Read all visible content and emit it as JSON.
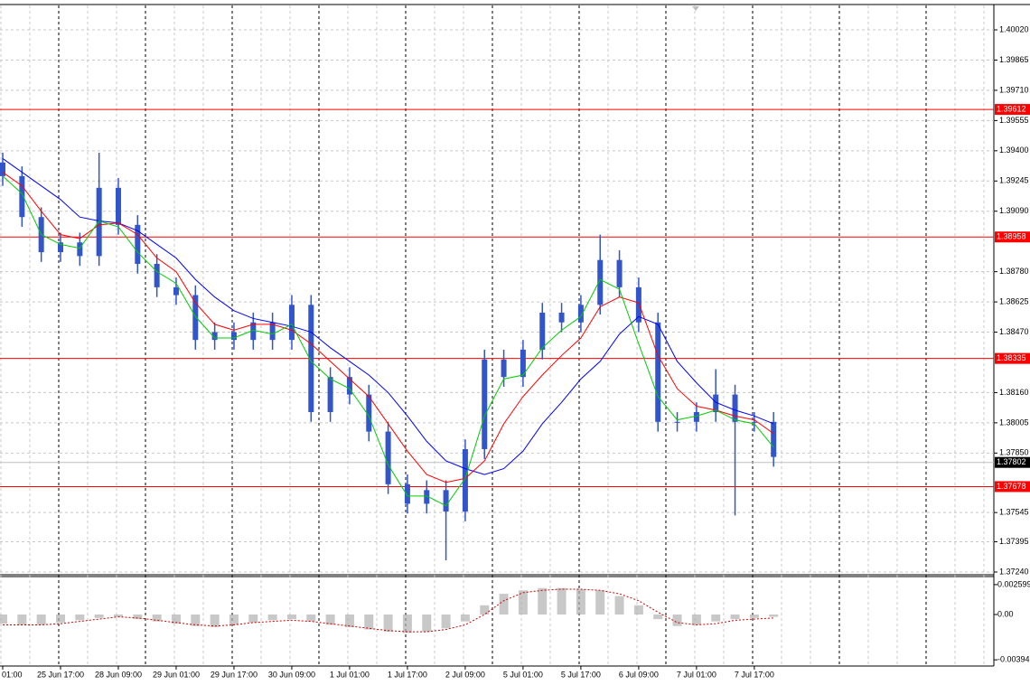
{
  "chart_data": {
    "type": "candlestick",
    "categories": [
      "01:00",
      null,
      null,
      "25 Jun 17:00",
      null,
      null,
      "28 Jun 09:00",
      null,
      null,
      "29 Jun 01:00",
      null,
      null,
      "29 Jun 17:00",
      null,
      null,
      "30 Jun 09:00",
      null,
      null,
      "1 Jul 01:00",
      null,
      null,
      "1 Jul 17:00",
      null,
      null,
      "2 Jul 09:00",
      null,
      null,
      "5 Jul 01:00",
      null,
      null,
      "5 Jul 17:00",
      null,
      null,
      "6 Jul 09:00",
      null,
      null,
      "7 Jul 01:00",
      null,
      null,
      "7 Jul 17:00",
      null
    ],
    "open": [
      1.3934,
      1.3927,
      1.3906,
      1.3888,
      1.3893,
      1.3886,
      1.3921,
      1.3902,
      1.3882,
      1.387,
      1.3866,
      1.3843,
      1.3847,
      1.3843,
      1.3852,
      1.3843,
      1.3861,
      1.3806,
      1.3824,
      1.3815,
      1.3796,
      1.3769,
      1.3759,
      1.3766,
      1.3755,
      1.3787,
      1.3833,
      1.3824,
      1.3838,
      1.3857,
      1.3852,
      1.3861,
      1.3884,
      1.387,
      1.3852,
      1.3801,
      1.3801,
      1.3806,
      1.3815,
      1.3801,
      1.3801
    ],
    "high": [
      1.3939,
      1.3932,
      1.3911,
      1.3898,
      1.3898,
      1.3939,
      1.3926,
      1.3907,
      1.3887,
      1.3875,
      1.3871,
      1.3852,
      1.3852,
      1.3857,
      1.3857,
      1.3866,
      1.3866,
      1.3829,
      1.3829,
      1.382,
      1.3801,
      1.3774,
      1.3771,
      1.3771,
      1.3792,
      1.3838,
      1.3838,
      1.3843,
      1.3862,
      1.3862,
      1.3866,
      1.3897,
      1.3889,
      1.3875,
      1.3857,
      1.3806,
      1.3811,
      1.3828,
      1.382,
      1.3806,
      1.3806
    ],
    "low": [
      1.3922,
      1.3901,
      1.3883,
      1.3883,
      1.3881,
      1.3881,
      1.3897,
      1.3877,
      1.3865,
      1.3861,
      1.3838,
      1.3838,
      1.3838,
      1.3838,
      1.3838,
      1.3838,
      1.3801,
      1.3801,
      1.381,
      1.3791,
      1.3764,
      1.3754,
      1.3754,
      1.373,
      1.375,
      1.3782,
      1.3819,
      1.3819,
      1.3833,
      1.3847,
      1.3847,
      1.3856,
      1.3865,
      1.3847,
      1.3796,
      1.3796,
      1.3796,
      1.3801,
      1.3753,
      1.3796,
      1.3778
    ],
    "close": [
      1.3927,
      1.3906,
      1.3888,
      1.3893,
      1.3886,
      1.3921,
      1.3902,
      1.3882,
      1.387,
      1.3866,
      1.3843,
      1.3847,
      1.3843,
      1.3852,
      1.3843,
      1.3861,
      1.3806,
      1.3824,
      1.3815,
      1.3796,
      1.3769,
      1.3759,
      1.3766,
      1.3755,
      1.3787,
      1.3833,
      1.3824,
      1.3838,
      1.3857,
      1.3852,
      1.3861,
      1.3884,
      1.387,
      1.3852,
      1.3801,
      1.3801,
      1.3806,
      1.3815,
      1.3801,
      1.3801,
      1.3783
    ],
    "color": "#3355cc",
    "lines": [
      {
        "color": "#0000ff",
        "values": [
          1.3936,
          1.3929,
          1.3922,
          1.3915,
          1.3906,
          1.3904,
          1.3903,
          1.3899,
          1.3892,
          1.3885,
          1.3874,
          1.3865,
          1.3858,
          1.3854,
          1.3852,
          1.385,
          1.3847,
          1.3839,
          1.3832,
          1.3825,
          1.3816,
          1.3804,
          1.3791,
          1.3781,
          1.3777,
          1.3774,
          1.3777,
          1.3786,
          1.38,
          1.3811,
          1.3823,
          1.3832,
          1.3846,
          1.3855,
          1.3851,
          1.3832,
          1.3821,
          1.3811,
          1.3807,
          1.3804,
          1.38
        ]
      },
      {
        "color": "#ff0000",
        "values": [
          1.3929,
          1.3922,
          1.3909,
          1.3897,
          1.3895,
          1.3902,
          1.3903,
          1.3897,
          1.3885,
          1.3878,
          1.3862,
          1.3851,
          1.3848,
          1.3851,
          1.3851,
          1.3848,
          1.3841,
          1.3832,
          1.3823,
          1.3814,
          1.38,
          1.3786,
          1.3774,
          1.377,
          1.3772,
          1.3781,
          1.38,
          1.3814,
          1.3825,
          1.3835,
          1.3844,
          1.386,
          1.3865,
          1.3862,
          1.3835,
          1.3818,
          1.3809,
          1.3807,
          1.3804,
          1.3802,
          1.3795
        ]
      },
      {
        "color": "#00cc00",
        "values": [
          1.3927,
          1.3918,
          1.3897,
          1.3892,
          1.389,
          1.3904,
          1.3901,
          1.3888,
          1.3878,
          1.3872,
          1.3855,
          1.3844,
          1.3844,
          1.3848,
          1.3846,
          1.3851,
          1.3832,
          1.3823,
          1.3818,
          1.3804,
          1.3779,
          1.3763,
          1.3763,
          1.3758,
          1.3772,
          1.3804,
          1.3823,
          1.3825,
          1.3839,
          1.3848,
          1.3855,
          1.3874,
          1.3869,
          1.3841,
          1.3814,
          1.3802,
          1.3804,
          1.3807,
          1.3802,
          1.38,
          1.3788
        ]
      }
    ],
    "ylim": [
      1.37226,
      1.40136
    ],
    "yticks": [
      {
        "value": 1.4002,
        "label": "1.40020"
      },
      1.39865,
      {
        "value": 1.3971,
        "label": "1.39710"
      },
      1.39555,
      {
        "value": 1.394,
        "label": "1.39400"
      },
      1.39245,
      {
        "value": 1.3909,
        "label": "1.39090"
      },
      {
        "value": 1.3878,
        "label": "1.38780"
      },
      1.38625,
      {
        "value": 1.3847,
        "label": "1.38470"
      },
      {
        "value": 1.3816,
        "label": "1.38160"
      },
      1.38005,
      {
        "value": 1.3785,
        "label": "1.37850"
      },
      1.37545,
      1.37395,
      {
        "value": 1.3724,
        "label": "1.37240"
      }
    ],
    "levels": [
      1.39612,
      1.38958,
      1.38335,
      1.37678
    ],
    "level_color": "#ff0000",
    "bid": 1.37802,
    "oscillator": {
      "histogram": [
        -0.0008,
        -0.0009,
        -0.0009,
        -0.0007,
        -0.0005,
        -0.0003,
        -0.0002,
        -0.0004,
        -0.0006,
        -0.0008,
        -0.001,
        -0.0011,
        -0.0009,
        -0.0007,
        -0.0005,
        -0.0004,
        -0.0006,
        -0.0009,
        -0.0011,
        -0.0013,
        -0.0015,
        -0.0016,
        -0.0015,
        -0.0012,
        -0.0006,
        0.0008,
        0.0018,
        0.0021,
        0.0023,
        0.0023,
        0.0022,
        0.0021,
        0.0016,
        0.0008,
        -0.0004,
        -0.001,
        -0.0009,
        -0.0006,
        -0.0004,
        -0.0003,
        -0.0002
      ],
      "signal": [
        -0.0009,
        -0.0009,
        -0.0009,
        -0.0008,
        -0.0006,
        -0.0004,
        -0.0002,
        -0.0003,
        -0.0005,
        -0.0007,
        -0.0009,
        -0.001,
        -0.0009,
        -0.0007,
        -0.0006,
        -0.0005,
        -0.0006,
        -0.0008,
        -0.001,
        -0.0012,
        -0.0014,
        -0.0015,
        -0.0015,
        -0.0013,
        -0.0009,
        0.0,
        0.0012,
        0.0019,
        0.0021,
        0.0022,
        0.0022,
        0.0021,
        0.0018,
        0.0012,
        0.0002,
        -0.0007,
        -0.0009,
        -0.0008,
        -0.0005,
        -0.0004,
        -0.0003
      ],
      "histogram_color": "#b0b0b0",
      "signal_color": "#d00000",
      "ylim": [
        -0.0044,
        0.0033
      ],
      "yticks": [
        0.002599,
        {
          "value": 0,
          "label": "0.00"
        },
        -0.00394
      ]
    }
  }
}
